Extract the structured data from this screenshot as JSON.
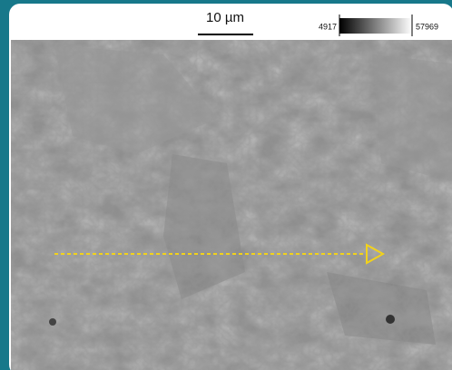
{
  "scale_bar": {
    "label": "10 µm"
  },
  "colorbar": {
    "min": 4917,
    "max": 57969
  }
}
